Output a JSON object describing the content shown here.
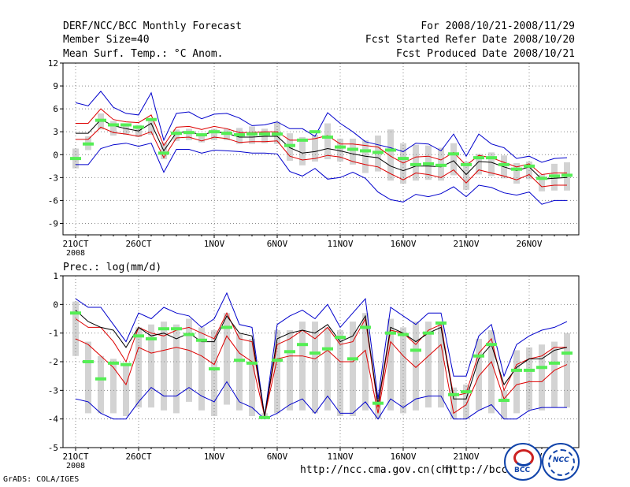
{
  "header": {
    "title": "DERF/NCC/BCC Monthly Forecast",
    "member_size": "Member Size=40",
    "variable": "Mean Surf. Temp.: °C Anom.",
    "period": "For 2008/10/21-2008/11/29",
    "fcst_started": "Fcst Started Refer Date 2008/10/20",
    "fcst_produced": "Fcst Produced Date 2008/10/21"
  },
  "footer": {
    "url1": "http://ncc.cma.gov.cn(ch)",
    "url2": "http://bcc.c",
    "grads": "GrADS: COLA/IGES",
    "logo_left": "BCC",
    "logo_right": "NCC"
  },
  "colors": {
    "envelope": "#0000cc",
    "spread": "#dd0000",
    "mean": "#000000",
    "box": "#d3d3d3",
    "obs": "#55ee55"
  },
  "chart_data": [
    {
      "type": "line",
      "title": "Mean Surf. Temp.: °C Anom.",
      "x_ticks": [
        "21OCT",
        "26OCT",
        "1NOV",
        "6NOV",
        "11NOV",
        "16NOV",
        "21NOV",
        "26NOV"
      ],
      "x_tick_index": [
        0,
        5,
        11,
        16,
        21,
        26,
        31,
        36
      ],
      "x_sub_label": "2008",
      "ylim": [
        -10.5,
        12
      ],
      "y_ticks": [
        12,
        9,
        6,
        3,
        0,
        -3,
        -6,
        -9
      ],
      "series": [
        {
          "name": "max",
          "values": [
            6.8,
            6.4,
            8.3,
            6.2,
            5.4,
            5.2,
            8.1,
            1.9,
            5.4,
            5.6,
            4.7,
            5.3,
            5.4,
            4.8,
            3.8,
            3.9,
            4.3,
            3.4,
            3.4,
            2.4,
            5.5,
            4.1,
            3.0,
            1.7,
            1.3,
            0.9,
            0.4,
            1.5,
            1.4,
            0.5,
            2.7,
            -0.2,
            2.7,
            1.4,
            0.9,
            -0.5,
            -0.2,
            -1.0,
            -0.5,
            -0.4
          ]
        },
        {
          "name": "p_high",
          "values": [
            4.1,
            4.1,
            6.0,
            4.6,
            4.3,
            4.2,
            5.2,
            1.2,
            3.6,
            3.7,
            3.3,
            3.7,
            3.4,
            2.9,
            2.9,
            3.0,
            3.0,
            1.9,
            1.9,
            2.1,
            2.5,
            1.4,
            1.4,
            1.2,
            1.0,
            -0.2,
            -1.1,
            -0.3,
            -0.2,
            -0.7,
            0.3,
            -1.4,
            -0.1,
            -0.4,
            -1.0,
            -1.6,
            -1.2,
            -2.6,
            -2.4,
            -2.4
          ]
        },
        {
          "name": "mean",
          "values": [
            2.8,
            2.8,
            4.6,
            3.8,
            3.4,
            3.1,
            4.1,
            0.5,
            2.9,
            3.0,
            2.6,
            3.0,
            2.8,
            2.3,
            2.3,
            2.4,
            2.4,
            0.9,
            0.2,
            0.4,
            0.8,
            0.5,
            0.1,
            -0.2,
            -0.4,
            -1.5,
            -2.1,
            -1.5,
            -1.5,
            -1.6,
            -0.8,
            -2.6,
            -0.9,
            -1.0,
            -1.6,
            -2.1,
            -1.6,
            -3.2,
            -3.1,
            -3.0
          ]
        },
        {
          "name": "p_low",
          "values": [
            2.0,
            2.0,
            3.6,
            2.9,
            2.7,
            2.4,
            3.0,
            -0.4,
            2.2,
            2.3,
            1.8,
            2.3,
            2.1,
            1.6,
            1.7,
            1.7,
            1.8,
            -0.2,
            -0.7,
            -0.5,
            -0.1,
            -0.3,
            -0.9,
            -1.3,
            -1.6,
            -2.5,
            -3.3,
            -2.4,
            -2.6,
            -3.0,
            -2.0,
            -3.7,
            -2.0,
            -2.4,
            -2.8,
            -3.3,
            -2.6,
            -4.2,
            -4.0,
            -4.0
          ]
        },
        {
          "name": "min",
          "values": [
            -1.3,
            -1.3,
            0.8,
            1.3,
            1.5,
            1.1,
            1.5,
            -2.3,
            0.7,
            0.7,
            0.2,
            0.6,
            0.5,
            0.4,
            0.2,
            0.2,
            0.1,
            -2.2,
            -2.8,
            -1.8,
            -3.2,
            -3.0,
            -2.3,
            -3.1,
            -4.9,
            -5.9,
            -6.2,
            -5.2,
            -5.5,
            -5.1,
            -4.2,
            -5.5,
            -4.0,
            -4.3,
            -5.0,
            -5.3,
            -4.9,
            -6.5,
            -6.0,
            -6.0
          ]
        },
        {
          "name": "obs",
          "values": [
            -0.5,
            1.4,
            4.5,
            3.9,
            3.9,
            3.6,
            4.6,
            0.2,
            2.8,
            2.9,
            2.6,
            3.0,
            2.8,
            2.6,
            2.7,
            2.7,
            2.7,
            1.2,
            1.9,
            3.0,
            2.3,
            1.0,
            0.7,
            0.5,
            0.3,
            0.6,
            -0.5,
            -1.3,
            -1.2,
            -1.4,
            0.1,
            -1.3,
            -0.4,
            -0.4,
            -1.3,
            -1.9,
            -1.5,
            -3.1,
            -2.8,
            -2.7
          ]
        }
      ],
      "boxes_low": [
        -1.8,
        0.6,
        3.3,
        2.5,
        2.6,
        2.3,
        2.6,
        -0.6,
        1.8,
        1.9,
        1.6,
        1.9,
        1.9,
        1.4,
        1.4,
        1.5,
        1.4,
        -0.8,
        -1.4,
        -0.9,
        -0.6,
        -0.9,
        -1.3,
        -2.4,
        -2.2,
        -3.4,
        -3.8,
        -3.4,
        -3.3,
        -3.4,
        -2.7,
        -4.6,
        -2.6,
        -2.8,
        -3.1,
        -3.8,
        -3.2,
        -4.8,
        -4.7,
        -4.7
      ],
      "boxes_high": [
        0.8,
        2.4,
        5.4,
        4.4,
        4.1,
        3.9,
        4.6,
        1.6,
        3.3,
        3.4,
        2.8,
        3.4,
        3.4,
        3.5,
        3.7,
        3.4,
        4.3,
        2.8,
        2.3,
        2.6,
        4.1,
        2.1,
        2.1,
        1.9,
        2.5,
        3.3,
        1.5,
        1.3,
        1.2,
        0.9,
        1.5,
        -0.9,
        0.1,
        0.3,
        -0.1,
        -1.1,
        -0.9,
        -2.6,
        -1.2,
        -1.0
      ]
    },
    {
      "type": "line",
      "title": "Prec.: log(mm/d)",
      "x_ticks": [
        "21OCT",
        "26OCT",
        "1NOV",
        "6NOV",
        "11NOV",
        "16NOV",
        "21NOV",
        "26NOV"
      ],
      "x_tick_index": [
        0,
        5,
        11,
        16,
        21,
        26,
        31,
        36
      ],
      "x_sub_label": "2008",
      "ylim": [
        -5,
        1
      ],
      "y_ticks": [
        1,
        0,
        -1,
        -2,
        -3,
        -4,
        -5
      ],
      "series": [
        {
          "name": "max",
          "values": [
            0.2,
            -0.1,
            -0.1,
            -0.7,
            -1.3,
            -0.3,
            -0.5,
            -0.1,
            -0.3,
            -0.4,
            -0.8,
            -0.5,
            0.4,
            -0.7,
            -0.8,
            -3.9,
            -0.7,
            -0.4,
            -0.2,
            -0.5,
            0.0,
            -0.8,
            -0.3,
            0.2,
            -3.3,
            -0.1,
            -0.4,
            -0.7,
            -0.3,
            -0.3,
            -2.5,
            -2.5,
            -1.1,
            -0.7,
            -2.5,
            -1.4,
            -1.1,
            -0.9,
            -0.8,
            -0.6
          ]
        },
        {
          "name": "p_high",
          "values": [
            -0.5,
            -0.8,
            -0.8,
            -1.3,
            -2.0,
            -0.8,
            -1.0,
            -1.1,
            -0.9,
            -0.8,
            -1.0,
            -1.2,
            -0.3,
            -1.2,
            -1.3,
            -3.9,
            -1.4,
            -1.2,
            -0.9,
            -1.2,
            -0.8,
            -1.4,
            -1.3,
            -0.5,
            -3.6,
            -0.9,
            -1.0,
            -1.4,
            -0.9,
            -0.7,
            -3.2,
            -3.1,
            -1.7,
            -1.2,
            -3.0,
            -2.1,
            -1.9,
            -1.8,
            -1.5,
            -1.5
          ]
        },
        {
          "name": "p_low",
          "values": [
            -1.2,
            -1.4,
            -1.8,
            -2.2,
            -2.8,
            -1.5,
            -1.7,
            -1.6,
            -1.5,
            -1.6,
            -1.8,
            -2.1,
            -1.1,
            -1.7,
            -2.0,
            -3.9,
            -1.9,
            -1.8,
            -1.8,
            -1.9,
            -1.6,
            -2.0,
            -2.0,
            -1.6,
            -3.8,
            -1.3,
            -1.8,
            -2.2,
            -1.8,
            -1.4,
            -3.8,
            -3.5,
            -2.5,
            -2.0,
            -3.3,
            -2.8,
            -2.7,
            -2.7,
            -2.3,
            -2.1
          ]
        },
        {
          "name": "min",
          "values": [
            -3.3,
            -3.4,
            -3.8,
            -4.0,
            -4.0,
            -3.4,
            -2.9,
            -3.2,
            -3.2,
            -2.9,
            -3.2,
            -3.4,
            -2.7,
            -3.4,
            -3.6,
            -4.0,
            -3.8,
            -3.5,
            -3.3,
            -3.8,
            -3.2,
            -3.8,
            -3.8,
            -3.4,
            -4.0,
            -3.3,
            -3.6,
            -3.3,
            -3.2,
            -3.2,
            -4.0,
            -4.0,
            -3.7,
            -3.5,
            -4.0,
            -4.0,
            -3.7,
            -3.6,
            -3.6,
            -3.6
          ]
        },
        {
          "name": "mean",
          "values": [
            -0.2,
            -0.6,
            -0.8,
            -0.9,
            -1.5,
            -0.8,
            -1.1,
            -1.0,
            -1.2,
            -1.0,
            -1.3,
            -1.3,
            -0.4,
            -1.0,
            -1.1,
            -3.9,
            -1.2,
            -1.0,
            -0.9,
            -1.0,
            -0.7,
            -1.3,
            -1.1,
            -0.4,
            -3.5,
            -0.8,
            -1.0,
            -1.3,
            -1.0,
            -0.8,
            -3.3,
            -3.3,
            -1.9,
            -1.4,
            -2.8,
            -2.2,
            -1.9,
            -1.9,
            -1.6,
            -1.5
          ]
        },
        {
          "name": "obs",
          "values": [
            -0.3,
            -2.0,
            -2.6,
            -2.05,
            -2.1,
            -1.1,
            -1.2,
            -0.85,
            -0.85,
            -1.05,
            -1.25,
            -2.25,
            -0.8,
            -1.95,
            -2.05,
            -3.95,
            -1.95,
            -1.65,
            -1.4,
            -1.7,
            -1.55,
            -1.15,
            -1.9,
            -0.8,
            -3.45,
            -1.0,
            -1.05,
            -1.6,
            -1.0,
            -0.65,
            -3.15,
            -3.05,
            -1.8,
            -1.4,
            -3.35,
            -2.3,
            -2.3,
            -2.2,
            -2.05,
            -1.7
          ]
        }
      ],
      "boxes_low": [
        -1.8,
        -3.8,
        -3.8,
        -3.8,
        -3.9,
        -3.6,
        -3.6,
        -3.7,
        -3.8,
        -3.4,
        -3.7,
        -3.9,
        -3.5,
        -3.7,
        -3.9,
        -4.0,
        -3.8,
        -3.7,
        -3.7,
        -3.8,
        -3.7,
        -3.9,
        -3.9,
        -3.7,
        -4.0,
        -3.7,
        -3.8,
        -3.7,
        -3.6,
        -3.6,
        -4.0,
        -4.0,
        -3.7,
        -3.8,
        -4.0,
        -3.8,
        -3.7,
        -3.7,
        -3.6,
        -3.6
      ],
      "boxes_high": [
        0.1,
        -1.3,
        -1.8,
        -1.9,
        -2.1,
        -0.8,
        -0.7,
        -0.6,
        -0.7,
        -0.5,
        -0.8,
        -0.9,
        -0.3,
        -1.0,
        -1.2,
        -3.8,
        -0.9,
        -0.9,
        -0.6,
        -0.6,
        -0.8,
        -0.9,
        -0.6,
        -0.3,
        -3.2,
        -0.5,
        -0.8,
        -0.6,
        -0.6,
        -0.6,
        -2.9,
        -2.8,
        -1.2,
        -0.9,
        -3.0,
        -1.6,
        -1.5,
        -1.4,
        -1.3,
        -1.0
      ]
    }
  ]
}
